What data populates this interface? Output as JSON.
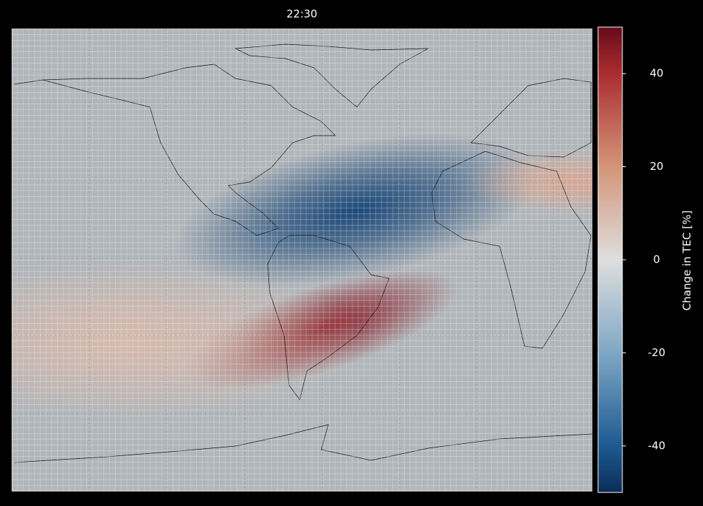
{
  "chart_data": {
    "type": "map-field",
    "title": "22:30",
    "lon_range": [
      -173,
      41
    ],
    "lat_range": [
      -80,
      80
    ],
    "background_value": -3,
    "features": [
      {
        "lon": -46,
        "lat": 17,
        "value": -45
      },
      {
        "lon": -59,
        "lat": -24,
        "value": 45
      },
      {
        "lon": 33,
        "lat": 27,
        "value": 15
      },
      {
        "lon": -130,
        "lat": -28,
        "value": 10
      }
    ],
    "colorbar": {
      "label": "Change in TEC [%]",
      "lim": [
        -50,
        50
      ],
      "ticks": [
        -40,
        -20,
        0,
        20,
        40
      ],
      "colormap": [
        {
          "value": -50,
          "color": "#0b2c58"
        },
        {
          "value": -40,
          "color": "#1d5a92"
        },
        {
          "value": -20,
          "color": "#7fa7c4"
        },
        {
          "value": 0,
          "color": "#dedede"
        },
        {
          "value": 20,
          "color": "#d4957a"
        },
        {
          "value": 40,
          "color": "#aa2d2f"
        },
        {
          "value": 50,
          "color": "#670a1c"
        }
      ]
    }
  }
}
